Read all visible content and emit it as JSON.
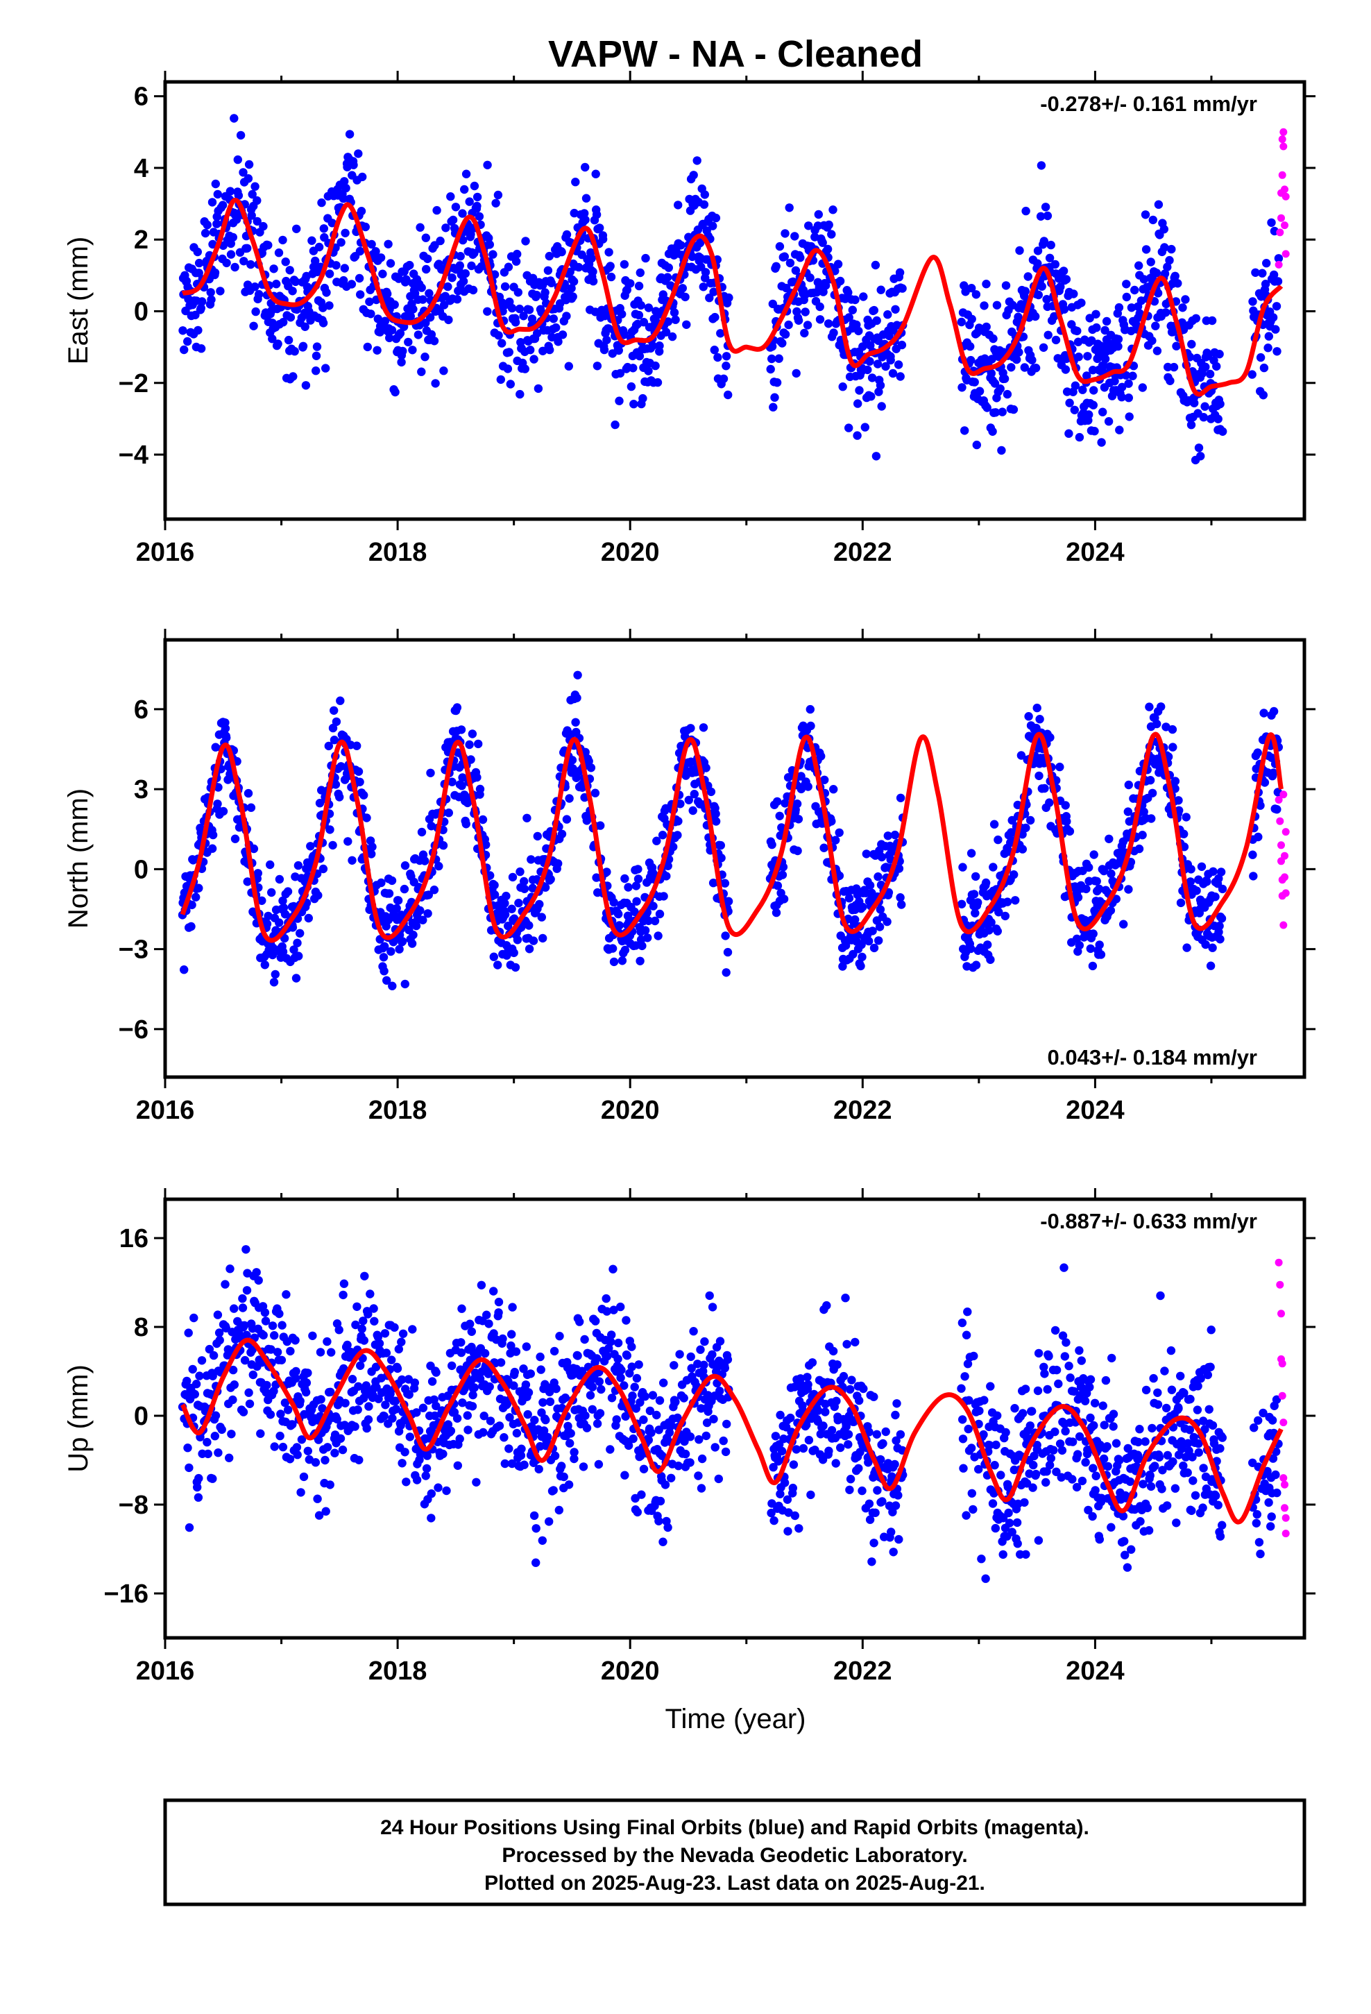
{
  "title": "VAPW  - NA - Cleaned",
  "xlabel": "Time (year)",
  "caption": [
    "24 Hour Positions Using Final Orbits (blue) and Rapid Orbits (magenta).",
    "Processed by the Nevada Geodetic Laboratory.",
    "Plotted on 2025-Aug-23. Last data on 2025-Aug-21."
  ],
  "colors": {
    "final": "#0000ff",
    "rapid": "#ff00ff",
    "model": "#ff0000",
    "frame": "#000000"
  },
  "chart_data": [
    {
      "type": "scatter",
      "ylabel": "East (mm)",
      "rate": "-0.278+/- 0.161 mm/yr",
      "xlim": [
        2016.0,
        2025.8
      ],
      "ylim": [
        -5.8,
        6.4
      ],
      "xticks": [
        2016,
        2018,
        2020,
        2022,
        2024
      ],
      "yticks": [
        -4,
        -2,
        0,
        2,
        4,
        6
      ],
      "ytick_labels": [
        "−4",
        "−2",
        "0",
        "2",
        "4",
        "6"
      ],
      "model": {
        "name": "fit",
        "x": [
          2016.15,
          2016.3,
          2016.45,
          2016.6,
          2016.75,
          2016.9,
          2017.05,
          2017.2,
          2017.35,
          2017.5,
          2017.6,
          2017.75,
          2017.9,
          2018.05,
          2018.2,
          2018.35,
          2018.6,
          2018.75,
          2018.9,
          2019.05,
          2019.2,
          2019.35,
          2019.6,
          2019.75,
          2019.9,
          2020.05,
          2020.2,
          2020.35,
          2020.55,
          2020.7,
          2020.85,
          2021.0,
          2021.15,
          2021.3,
          2021.45,
          2021.6,
          2021.75,
          2021.9,
          2022.05,
          2022.2,
          2022.35,
          2022.6,
          2022.75,
          2022.9,
          2023.05,
          2023.2,
          2023.35,
          2023.55,
          2023.7,
          2023.85,
          2024.0,
          2024.15,
          2024.3,
          2024.55,
          2024.7,
          2024.85,
          2025.0,
          2025.15,
          2025.3,
          2025.45,
          2025.6
        ],
        "y": [
          0.5,
          0.7,
          1.8,
          3.1,
          2.0,
          0.5,
          0.2,
          0.3,
          1.0,
          2.6,
          2.9,
          1.5,
          0.0,
          -0.3,
          -0.2,
          0.5,
          2.6,
          1.6,
          -0.4,
          -0.5,
          -0.4,
          0.4,
          2.3,
          1.2,
          -0.7,
          -0.8,
          -0.7,
          0.3,
          2.0,
          1.6,
          -0.9,
          -1.0,
          -1.0,
          -0.2,
          0.8,
          1.7,
          0.8,
          -1.4,
          -1.2,
          -1.0,
          -0.4,
          1.5,
          0.2,
          -1.6,
          -1.6,
          -1.4,
          -0.6,
          1.2,
          -0.2,
          -1.8,
          -1.9,
          -1.7,
          -1.4,
          0.9,
          -0.3,
          -2.2,
          -2.1,
          -2.0,
          -1.7,
          0.1,
          0.7
        ]
      },
      "series": [
        {
          "name": "final",
          "anchors": {
            "x": [
              2016.15,
              2016.3,
              2016.45,
              2016.6,
              2016.75,
              2016.9,
              2017.05,
              2017.2,
              2017.35,
              2017.5,
              2017.6,
              2017.75,
              2017.9,
              2018.05,
              2018.2,
              2018.35,
              2018.6,
              2018.75,
              2018.9,
              2019.05,
              2019.2,
              2019.35,
              2019.6,
              2019.75,
              2019.9,
              2020.05,
              2020.2,
              2020.35,
              2020.55,
              2020.7,
              2020.85,
              2021.0,
              2021.15,
              2021.3,
              2021.45,
              2021.6,
              2021.75,
              2021.9,
              2022.05,
              2022.2,
              2022.35,
              2022.6,
              2022.75,
              2022.9,
              2023.05,
              2023.2,
              2023.35,
              2023.55,
              2023.7,
              2023.85,
              2024.0,
              2024.15,
              2024.3,
              2024.55,
              2024.7,
              2024.85,
              2025.0,
              2025.15,
              2025.3,
              2025.45,
              2025.6
            ],
            "y": [
              0.5,
              0.7,
              1.8,
              3.1,
              2.0,
              0.5,
              0.2,
              0.3,
              1.0,
              2.6,
              2.9,
              1.5,
              0.0,
              -0.3,
              -0.2,
              0.5,
              2.6,
              1.6,
              -0.4,
              -0.5,
              -0.4,
              0.4,
              2.3,
              1.2,
              -0.7,
              -0.8,
              -0.7,
              0.3,
              2.0,
              1.6,
              -0.9,
              -1.0,
              -1.0,
              -0.2,
              0.8,
              1.7,
              0.8,
              -1.4,
              -1.2,
              -1.0,
              -0.4,
              1.5,
              0.2,
              -1.6,
              -1.6,
              -1.4,
              -0.6,
              1.2,
              -0.2,
              -1.8,
              -1.9,
              -1.7,
              -1.4,
              0.9,
              -0.3,
              -2.2,
              -2.1,
              -2.0,
              -1.7,
              0.1,
              0.7
            ]
          },
          "scatter_sd": 1.0,
          "step_years": 0.0045,
          "gaps": [
            [
              2020.85,
              2021.2
            ],
            [
              2022.35,
              2022.85
            ],
            [
              2025.1,
              2025.35
            ]
          ]
        },
        {
          "name": "rapid",
          "x": [
            2025.58,
            2025.59,
            2025.6,
            2025.6,
            2025.61,
            2025.61,
            2025.62,
            2025.62,
            2025.63,
            2025.63,
            2025.64,
            2025.64
          ],
          "y": [
            1.3,
            2.2,
            2.6,
            3.3,
            3.8,
            4.8,
            5.0,
            4.6,
            3.4,
            2.4,
            1.6,
            3.2
          ]
        }
      ]
    },
    {
      "type": "scatter",
      "ylabel": "North (mm)",
      "rate": "0.043+/- 0.184 mm/yr",
      "xlim": [
        2016.0,
        2025.8
      ],
      "ylim": [
        -7.8,
        8.6
      ],
      "xticks": [
        2016,
        2018,
        2020,
        2022,
        2024
      ],
      "yticks": [
        -6,
        -3,
        0,
        3,
        6
      ],
      "ytick_labels": [
        "−6",
        "−3",
        "0",
        "3",
        "6"
      ],
      "model": {
        "name": "fit",
        "x": [
          2016.15,
          2016.3,
          2016.5,
          2016.65,
          2016.85,
          2017.1,
          2017.3,
          2017.5,
          2017.65,
          2017.85,
          2018.1,
          2018.3,
          2018.5,
          2018.65,
          2018.85,
          2019.1,
          2019.3,
          2019.5,
          2019.65,
          2019.85,
          2020.1,
          2020.3,
          2020.5,
          2020.65,
          2020.85,
          2021.1,
          2021.3,
          2021.5,
          2021.65,
          2021.85,
          2022.1,
          2022.3,
          2022.5,
          2022.65,
          2022.85,
          2023.1,
          2023.3,
          2023.5,
          2023.65,
          2023.85,
          2024.1,
          2024.3,
          2024.5,
          2024.65,
          2024.85,
          2025.1,
          2025.3,
          2025.5,
          2025.6
        ],
        "y": [
          -1.7,
          0.4,
          4.6,
          2.5,
          -2.4,
          -1.8,
          0.3,
          4.7,
          2.6,
          -2.3,
          -1.7,
          0.4,
          4.7,
          2.6,
          -2.3,
          -1.6,
          0.4,
          4.8,
          2.7,
          -2.2,
          -1.6,
          0.5,
          4.8,
          2.7,
          -2.2,
          -1.5,
          0.6,
          4.9,
          2.7,
          -2.1,
          -1.4,
          0.6,
          4.9,
          2.8,
          -2.1,
          -1.4,
          0.7,
          5.0,
          2.8,
          -2.0,
          -1.3,
          0.8,
          5.0,
          2.9,
          -2.0,
          -1.2,
          0.8,
          5.0,
          3.0
        ]
      },
      "series": [
        {
          "name": "final",
          "anchors": {
            "x": [
              2016.15,
              2016.3,
              2016.5,
              2016.65,
              2016.85,
              2017.1,
              2017.3,
              2017.5,
              2017.65,
              2017.85,
              2018.1,
              2018.3,
              2018.5,
              2018.65,
              2018.85,
              2019.1,
              2019.3,
              2019.5,
              2019.65,
              2019.85,
              2020.1,
              2020.3,
              2020.5,
              2020.65,
              2020.85,
              2021.1,
              2021.3,
              2021.5,
              2021.65,
              2021.85,
              2022.1,
              2022.3,
              2022.5,
              2022.65,
              2022.85,
              2023.1,
              2023.3,
              2023.5,
              2023.65,
              2023.85,
              2024.1,
              2024.3,
              2024.5,
              2024.65,
              2024.85,
              2025.1,
              2025.3,
              2025.5,
              2025.6
            ],
            "y": [
              -1.7,
              0.4,
              4.6,
              2.5,
              -2.4,
              -1.8,
              0.3,
              4.7,
              2.6,
              -2.3,
              -1.7,
              0.4,
              4.7,
              2.6,
              -2.3,
              -1.6,
              0.4,
              4.8,
              2.7,
              -2.2,
              -1.6,
              0.5,
              4.8,
              2.7,
              -2.2,
              -1.5,
              0.6,
              4.9,
              2.7,
              -2.1,
              -1.4,
              0.6,
              4.9,
              2.8,
              -2.1,
              -1.4,
              0.7,
              5.0,
              2.8,
              -2.0,
              -1.3,
              0.8,
              5.0,
              2.9,
              -2.0,
              -1.2,
              0.8,
              5.0,
              3.0
            ]
          },
          "scatter_sd": 0.95,
          "step_years": 0.0045,
          "gaps": [
            [
              2020.85,
              2021.2
            ],
            [
              2022.35,
              2022.85
            ],
            [
              2025.1,
              2025.35
            ]
          ]
        },
        {
          "name": "rapid",
          "x": [
            2025.58,
            2025.59,
            2025.6,
            2025.6,
            2025.61,
            2025.61,
            2025.62,
            2025.62,
            2025.63,
            2025.63,
            2025.64,
            2025.64
          ],
          "y": [
            2.6,
            1.8,
            0.9,
            0.3,
            -0.4,
            -1.0,
            -2.1,
            2.8,
            0.5,
            -0.3,
            1.4,
            -0.9
          ]
        }
      ]
    },
    {
      "type": "scatter",
      "ylabel": "Up (mm)",
      "rate": "-0.887+/- 0.633 mm/yr",
      "xlim": [
        2016.0,
        2025.8
      ],
      "ylim": [
        -20.0,
        19.5
      ],
      "xticks": [
        2016,
        2018,
        2020,
        2022,
        2024
      ],
      "yticks": [
        -16,
        -8,
        0,
        8,
        16
      ],
      "ytick_labels": [
        "−16",
        "−8",
        "0",
        "8",
        "16"
      ],
      "model": {
        "name": "fit",
        "x": [
          2016.15,
          2016.3,
          2016.5,
          2016.7,
          2016.9,
          2017.1,
          2017.25,
          2017.45,
          2017.7,
          2017.9,
          2018.1,
          2018.25,
          2018.45,
          2018.7,
          2018.9,
          2019.1,
          2019.25,
          2019.45,
          2019.7,
          2019.9,
          2020.1,
          2020.25,
          2020.45,
          2020.7,
          2020.9,
          2021.1,
          2021.25,
          2021.45,
          2021.7,
          2021.9,
          2022.1,
          2022.25,
          2022.45,
          2022.7,
          2022.9,
          2023.1,
          2023.25,
          2023.45,
          2023.7,
          2023.9,
          2024.1,
          2024.25,
          2024.45,
          2024.7,
          2024.9,
          2025.1,
          2025.25,
          2025.45,
          2025.6
        ],
        "y": [
          1.0,
          -1.5,
          3.5,
          6.8,
          4.5,
          1.0,
          -2.0,
          1.5,
          5.8,
          4.0,
          0.0,
          -3.0,
          1.0,
          5.0,
          3.0,
          -1.0,
          -4.0,
          0.5,
          4.3,
          2.5,
          -2.0,
          -5.0,
          -0.5,
          3.5,
          1.5,
          -3.0,
          -6.0,
          -1.0,
          2.5,
          1.0,
          -4.0,
          -6.5,
          -1.5,
          1.8,
          0.5,
          -5.0,
          -7.5,
          -2.5,
          0.8,
          -1.0,
          -6.0,
          -8.5,
          -3.5,
          -0.3,
          -1.5,
          -7.0,
          -9.5,
          -4.5,
          -1.2
        ]
      },
      "series": [
        {
          "name": "final",
          "anchors": {
            "x": [
              2016.15,
              2016.3,
              2016.5,
              2016.7,
              2016.9,
              2017.1,
              2017.25,
              2017.45,
              2017.7,
              2017.9,
              2018.1,
              2018.25,
              2018.45,
              2018.7,
              2018.9,
              2019.1,
              2019.25,
              2019.45,
              2019.7,
              2019.9,
              2020.1,
              2020.25,
              2020.45,
              2020.7,
              2020.9,
              2021.1,
              2021.25,
              2021.45,
              2021.7,
              2021.9,
              2022.1,
              2022.25,
              2022.45,
              2022.7,
              2022.9,
              2023.1,
              2023.25,
              2023.45,
              2023.7,
              2023.9,
              2024.1,
              2024.25,
              2024.45,
              2024.7,
              2024.9,
              2025.1,
              2025.25,
              2025.45,
              2025.6
            ],
            "y": [
              1.0,
              -1.5,
              3.5,
              6.8,
              4.5,
              1.0,
              -2.0,
              1.5,
              5.8,
              4.0,
              0.0,
              -3.0,
              1.0,
              5.0,
              3.0,
              -1.0,
              -4.0,
              0.5,
              4.3,
              2.5,
              -2.0,
              -5.0,
              -0.5,
              3.5,
              1.5,
              -3.0,
              -6.0,
              -1.0,
              2.5,
              1.0,
              -4.0,
              -6.5,
              -1.5,
              1.8,
              0.5,
              -5.0,
              -7.5,
              -2.5,
              0.8,
              -1.0,
              -6.0,
              -8.5,
              -3.5,
              -0.3,
              -1.5,
              -7.0,
              -9.5,
              -4.5,
              -1.2
            ]
          },
          "scatter_sd": 3.6,
          "step_years": 0.0045,
          "gaps": [
            [
              2020.85,
              2021.2
            ],
            [
              2022.35,
              2022.85
            ],
            [
              2025.1,
              2025.35
            ]
          ]
        },
        {
          "name": "rapid",
          "x": [
            2025.58,
            2025.59,
            2025.6,
            2025.6,
            2025.61,
            2025.61,
            2025.62,
            2025.62,
            2025.63,
            2025.63,
            2025.64,
            2025.64
          ],
          "y": [
            13.8,
            11.8,
            9.2,
            5.1,
            4.7,
            1.8,
            -0.6,
            -5.6,
            -6.2,
            -8.3,
            -9.2,
            -10.6
          ]
        }
      ]
    }
  ]
}
